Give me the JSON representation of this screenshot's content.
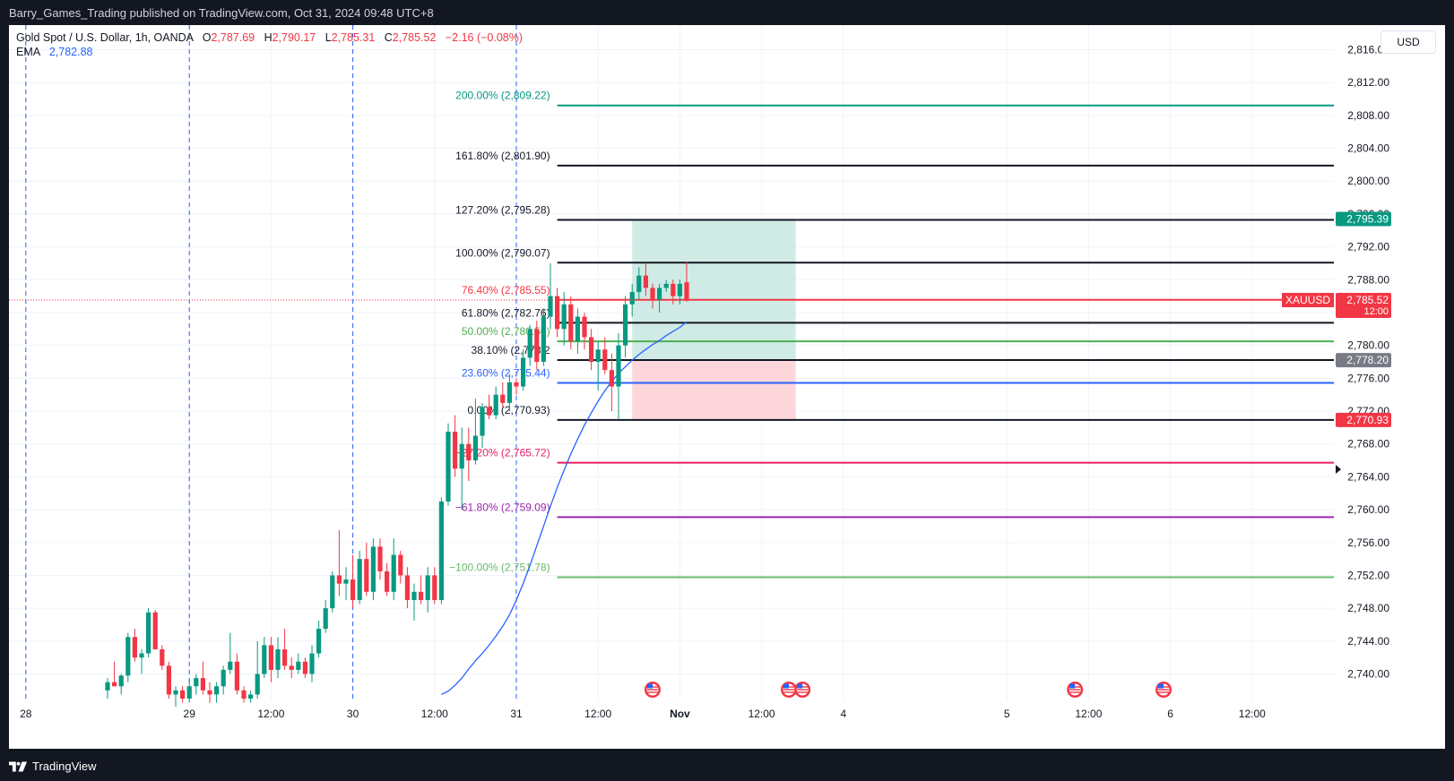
{
  "header": {
    "publisher_line": "Barry_Games_Trading published on TradingView.com, Oct 31, 2024 09:48 UTC+8"
  },
  "footer": {
    "brand": "TradingView"
  },
  "legend": {
    "symbol": "Gold Spot / U.S. Dollar, 1h, OANDA",
    "open_label": "O",
    "open": "2,787.69",
    "high_label": "H",
    "high": "2,790.17",
    "low_label": "L",
    "low": "2,785.31",
    "close_label": "C",
    "close": "2,785.52",
    "change": "−2.16 (−0.08%)",
    "ema_label": "EMA",
    "ema_value": "2,782.88"
  },
  "currency": "USD",
  "colors": {
    "up": "#089981",
    "down": "#f23645",
    "ema": "#2962ff",
    "grid": "#f0f3fa",
    "session": "#2962ff",
    "target_zone": "#d0ebe5",
    "stop_zone": "#fcd6da"
  },
  "chart_data": {
    "type": "candlestick",
    "symbol": "XAUUSD",
    "timeframe": "1h",
    "ylim": [
      2737,
      2819
    ],
    "y_ticks": [
      2740,
      2744,
      2748,
      2752,
      2756,
      2760,
      2764,
      2768,
      2772,
      2776,
      2780,
      2784,
      2788,
      2792,
      2796,
      2800,
      2804,
      2808,
      2812,
      2816
    ],
    "y_tick_labels": [
      "2,740.00",
      "2,744.00",
      "2,748.00",
      "2,752.00",
      "2,756.00",
      "2,760.00",
      "2,764.00",
      "2,768.00",
      "2,772.00",
      "2,776.00",
      "2,780.00",
      "2,784.00",
      "2,788.00",
      "2,792.00",
      "2,796.00",
      "2,800.00",
      "2,804.00",
      "2,808.00",
      "2,812.00",
      "2,816.00"
    ],
    "x_ticks": [
      {
        "label": "12:00",
        "bar": -24
      },
      {
        "label": "28",
        "bar": -12
      },
      {
        "label": "29",
        "bar": 12
      },
      {
        "label": "12:00",
        "bar": 24
      },
      {
        "label": "30",
        "bar": 36
      },
      {
        "label": "12:00",
        "bar": 48
      },
      {
        "label": "31",
        "bar": 60
      },
      {
        "label": "12:00",
        "bar": 72
      },
      {
        "label": "Nov",
        "bar": 84
      },
      {
        "label": "12:00",
        "bar": 96
      },
      {
        "label": "4",
        "bar": 108
      },
      {
        "label": "5",
        "bar": 132
      },
      {
        "label": "12:00",
        "bar": 144
      },
      {
        "label": "6",
        "bar": 156
      },
      {
        "label": "12:00",
        "bar": 168
      }
    ],
    "session_breaks": [
      -12,
      12,
      36,
      60
    ],
    "candles": [
      {
        "o": 2738.0,
        "h": 2739.5,
        "l": 2737.0,
        "c": 2739.0
      },
      {
        "o": 2739.0,
        "h": 2741.5,
        "l": 2738.5,
        "c": 2738.5
      },
      {
        "o": 2738.5,
        "h": 2740.0,
        "l": 2737.5,
        "c": 2739.8
      },
      {
        "o": 2739.8,
        "h": 2745.0,
        "l": 2739.0,
        "c": 2744.5
      },
      {
        "o": 2744.5,
        "h": 2745.5,
        "l": 2741.5,
        "c": 2742.0
      },
      {
        "o": 2742.0,
        "h": 2743.0,
        "l": 2740.0,
        "c": 2742.5
      },
      {
        "o": 2742.5,
        "h": 2748.0,
        "l": 2742.0,
        "c": 2747.5
      },
      {
        "o": 2747.5,
        "h": 2747.8,
        "l": 2743.0,
        "c": 2743.0
      },
      {
        "o": 2743.0,
        "h": 2743.5,
        "l": 2740.5,
        "c": 2741.0
      },
      {
        "o": 2741.0,
        "h": 2741.5,
        "l": 2737.0,
        "c": 2737.5
      },
      {
        "o": 2737.5,
        "h": 2738.5,
        "l": 2736.0,
        "c": 2738.0
      },
      {
        "o": 2738.0,
        "h": 2738.5,
        "l": 2736.5,
        "c": 2737.0
      },
      {
        "o": 2737.0,
        "h": 2739.5,
        "l": 2736.5,
        "c": 2738.5
      },
      {
        "o": 2738.5,
        "h": 2740.0,
        "l": 2737.5,
        "c": 2739.5
      },
      {
        "o": 2739.5,
        "h": 2741.5,
        "l": 2737.5,
        "c": 2738.0
      },
      {
        "o": 2738.0,
        "h": 2739.0,
        "l": 2736.5,
        "c": 2737.5
      },
      {
        "o": 2737.5,
        "h": 2739.0,
        "l": 2736.5,
        "c": 2738.5
      },
      {
        "o": 2738.5,
        "h": 2741.0,
        "l": 2737.5,
        "c": 2740.5
      },
      {
        "o": 2740.5,
        "h": 2745.0,
        "l": 2740.0,
        "c": 2741.5
      },
      {
        "o": 2741.5,
        "h": 2742.5,
        "l": 2737.5,
        "c": 2738.0
      },
      {
        "o": 2738.0,
        "h": 2738.5,
        "l": 2736.5,
        "c": 2737.0
      },
      {
        "o": 2737.0,
        "h": 2738.0,
        "l": 2736.5,
        "c": 2737.5
      },
      {
        "o": 2737.5,
        "h": 2744.0,
        "l": 2737.0,
        "c": 2740.0
      },
      {
        "o": 2740.0,
        "h": 2744.5,
        "l": 2739.5,
        "c": 2743.5
      },
      {
        "o": 2743.5,
        "h": 2744.5,
        "l": 2739.0,
        "c": 2740.5
      },
      {
        "o": 2740.5,
        "h": 2744.5,
        "l": 2739.5,
        "c": 2743.0
      },
      {
        "o": 2743.0,
        "h": 2745.5,
        "l": 2740.5,
        "c": 2741.0
      },
      {
        "o": 2741.0,
        "h": 2742.0,
        "l": 2739.5,
        "c": 2740.5
      },
      {
        "o": 2740.5,
        "h": 2742.5,
        "l": 2740.0,
        "c": 2741.5
      },
      {
        "o": 2741.5,
        "h": 2742.0,
        "l": 2739.5,
        "c": 2740.0
      },
      {
        "o": 2740.0,
        "h": 2743.5,
        "l": 2739.0,
        "c": 2742.5
      },
      {
        "o": 2742.5,
        "h": 2746.5,
        "l": 2742.0,
        "c": 2745.5
      },
      {
        "o": 2745.5,
        "h": 2749.0,
        "l": 2745.0,
        "c": 2748.0
      },
      {
        "o": 2748.0,
        "h": 2752.5,
        "l": 2747.5,
        "c": 2752.0
      },
      {
        "o": 2752.0,
        "h": 2757.5,
        "l": 2749.5,
        "c": 2751.0
      },
      {
        "o": 2751.0,
        "h": 2753.0,
        "l": 2749.0,
        "c": 2751.5
      },
      {
        "o": 2751.5,
        "h": 2754.5,
        "l": 2748.0,
        "c": 2749.0
      },
      {
        "o": 2749.0,
        "h": 2755.0,
        "l": 2748.5,
        "c": 2754.0
      },
      {
        "o": 2754.0,
        "h": 2756.0,
        "l": 2749.5,
        "c": 2750.0
      },
      {
        "o": 2750.0,
        "h": 2756.5,
        "l": 2749.0,
        "c": 2755.5
      },
      {
        "o": 2755.5,
        "h": 2756.5,
        "l": 2751.5,
        "c": 2752.5
      },
      {
        "o": 2752.5,
        "h": 2753.5,
        "l": 2749.5,
        "c": 2750.0
      },
      {
        "o": 2750.0,
        "h": 2756.5,
        "l": 2749.0,
        "c": 2754.5
      },
      {
        "o": 2754.5,
        "h": 2755.0,
        "l": 2751.0,
        "c": 2752.0
      },
      {
        "o": 2752.0,
        "h": 2753.0,
        "l": 2748.0,
        "c": 2749.0
      },
      {
        "o": 2749.0,
        "h": 2751.0,
        "l": 2746.5,
        "c": 2750.0
      },
      {
        "o": 2750.0,
        "h": 2752.0,
        "l": 2748.5,
        "c": 2749.0
      },
      {
        "o": 2749.0,
        "h": 2753.0,
        "l": 2747.5,
        "c": 2752.0
      },
      {
        "o": 2752.0,
        "h": 2753.0,
        "l": 2748.5,
        "c": 2749.0
      },
      {
        "o": 2749.0,
        "h": 2761.5,
        "l": 2748.5,
        "c": 2761.0
      },
      {
        "o": 2761.0,
        "h": 2770.5,
        "l": 2760.5,
        "c": 2769.5
      },
      {
        "o": 2769.5,
        "h": 2771.5,
        "l": 2764.0,
        "c": 2765.0
      },
      {
        "o": 2765.0,
        "h": 2770.0,
        "l": 2760.0,
        "c": 2768.0
      },
      {
        "o": 2768.0,
        "h": 2770.0,
        "l": 2763.5,
        "c": 2766.0
      },
      {
        "o": 2766.0,
        "h": 2773.5,
        "l": 2765.5,
        "c": 2769.0
      },
      {
        "o": 2769.0,
        "h": 2773.0,
        "l": 2767.5,
        "c": 2772.5
      },
      {
        "o": 2772.5,
        "h": 2774.0,
        "l": 2771.0,
        "c": 2771.5
      },
      {
        "o": 2771.5,
        "h": 2775.0,
        "l": 2771.0,
        "c": 2774.0
      },
      {
        "o": 2774.0,
        "h": 2775.5,
        "l": 2772.5,
        "c": 2773.0
      },
      {
        "o": 2773.0,
        "h": 2776.5,
        "l": 2772.0,
        "c": 2775.5
      },
      {
        "o": 2775.5,
        "h": 2776.0,
        "l": 2774.0,
        "c": 2775.0
      },
      {
        "o": 2775.0,
        "h": 2779.5,
        "l": 2774.5,
        "c": 2778.5
      },
      {
        "o": 2778.5,
        "h": 2782.5,
        "l": 2777.5,
        "c": 2782.0
      },
      {
        "o": 2782.0,
        "h": 2783.0,
        "l": 2777.0,
        "c": 2778.0
      },
      {
        "o": 2778.0,
        "h": 2784.5,
        "l": 2777.5,
        "c": 2783.5
      },
      {
        "o": 2783.5,
        "h": 2790.0,
        "l": 2782.0,
        "c": 2786.0
      },
      {
        "o": 2786.0,
        "h": 2787.0,
        "l": 2781.0,
        "c": 2782.0
      },
      {
        "o": 2782.0,
        "h": 2786.5,
        "l": 2780.0,
        "c": 2785.0
      },
      {
        "o": 2785.0,
        "h": 2786.0,
        "l": 2779.5,
        "c": 2780.5
      },
      {
        "o": 2780.5,
        "h": 2784.5,
        "l": 2779.0,
        "c": 2783.5
      },
      {
        "o": 2783.5,
        "h": 2784.0,
        "l": 2779.5,
        "c": 2781.0
      },
      {
        "o": 2781.0,
        "h": 2782.0,
        "l": 2777.0,
        "c": 2778.0
      },
      {
        "o": 2778.0,
        "h": 2780.5,
        "l": 2774.5,
        "c": 2779.5
      },
      {
        "o": 2779.5,
        "h": 2781.0,
        "l": 2776.5,
        "c": 2777.0
      },
      {
        "o": 2777.0,
        "h": 2779.0,
        "l": 2772.0,
        "c": 2775.0
      },
      {
        "o": 2775.0,
        "h": 2781.5,
        "l": 2771.0,
        "c": 2780.0
      },
      {
        "o": 2780.0,
        "h": 2786.0,
        "l": 2778.5,
        "c": 2785.0
      },
      {
        "o": 2785.0,
        "h": 2787.5,
        "l": 2783.5,
        "c": 2786.5
      },
      {
        "o": 2786.5,
        "h": 2789.5,
        "l": 2785.5,
        "c": 2788.5
      },
      {
        "o": 2788.5,
        "h": 2790.0,
        "l": 2786.0,
        "c": 2787.0
      },
      {
        "o": 2787.0,
        "h": 2787.5,
        "l": 2784.5,
        "c": 2785.5
      },
      {
        "o": 2785.5,
        "h": 2787.5,
        "l": 2784.0,
        "c": 2787.0
      },
      {
        "o": 2787.0,
        "h": 2788.0,
        "l": 2786.5,
        "c": 2787.5
      },
      {
        "o": 2787.5,
        "h": 2788.0,
        "l": 2785.0,
        "c": 2786.0
      },
      {
        "o": 2786.0,
        "h": 2788.0,
        "l": 2785.0,
        "c": 2787.5
      },
      {
        "o": 2787.69,
        "h": 2790.17,
        "l": 2785.31,
        "c": 2785.52
      }
    ],
    "ema": [
      2737.5,
      2737.9,
      2738.6,
      2739.5,
      2740.6,
      2741.6,
      2742.5,
      2743.5,
      2744.6,
      2745.8,
      2747.2,
      2749.0,
      2751.0,
      2753.2,
      2755.6,
      2758.0,
      2760.4,
      2762.7,
      2764.8,
      2766.8,
      2768.6,
      2770.3,
      2771.8,
      2773.2,
      2774.5,
      2775.6,
      2776.6,
      2777.4,
      2778.2,
      2778.9,
      2779.5,
      2780.1,
      2780.6,
      2781.2,
      2781.7,
      2782.2,
      2782.88
    ],
    "ema_start_bar": 49,
    "fibonacci": {
      "levels": [
        {
          "label": "200.00% (2,809.22)",
          "price": 2809.22,
          "color": "#089981"
        },
        {
          "label": "161.80% (2,801.90)",
          "price": 2801.9,
          "color": "#131722"
        },
        {
          "label": "127.20% (2,795.28)",
          "price": 2795.28,
          "color": "#131722"
        },
        {
          "label": "100.00% (2,790.07)",
          "price": 2790.07,
          "color": "#131722"
        },
        {
          "label": "76.40% (2,785.55)",
          "price": 2785.55,
          "color": "#f23645"
        },
        {
          "label": "61.80% (2,782.76)",
          "price": 2782.76,
          "color": "#131722"
        },
        {
          "label": "50.00% (2,780.50)",
          "price": 2780.5,
          "color": "#4caf50"
        },
        {
          "label": "38.10% (2,778.2",
          "price": 2778.22,
          "color": "#131722"
        },
        {
          "label": "23.60% (2,775.44)",
          "price": 2775.44,
          "color": "#2962ff"
        },
        {
          "label": "0.00% (2,770.93)",
          "price": 2770.93,
          "color": "#131722"
        },
        {
          "label": "−27.20% (2,765.72)",
          "price": 2765.72,
          "color": "#e91e63"
        },
        {
          "label": "−61.80% (2,759.09)",
          "price": 2759.09,
          "color": "#9c27b0"
        },
        {
          "label": "−100.00% (2,751.78)",
          "price": 2751.78,
          "color": "#66bb6a"
        }
      ],
      "start_bar": 66
    },
    "position": {
      "entry": 2778.2,
      "target": 2795.39,
      "stop": 2770.93,
      "start_bar": 77,
      "end_bar": 101
    },
    "price_labels": [
      {
        "text": "2,795.39",
        "price": 2795.39,
        "color": "#089981"
      },
      {
        "text": "2,785.52",
        "subtext": "12:00",
        "price": 2785.52,
        "color": "#f23645",
        "tag": "XAUUSD"
      },
      {
        "text": "2,778.20",
        "price": 2778.2,
        "color": "#787b86"
      },
      {
        "text": "2,770.93",
        "price": 2770.93,
        "color": "#f23645"
      }
    ],
    "event_markers_bars": [
      80,
      100,
      102,
      142,
      155
    ]
  }
}
